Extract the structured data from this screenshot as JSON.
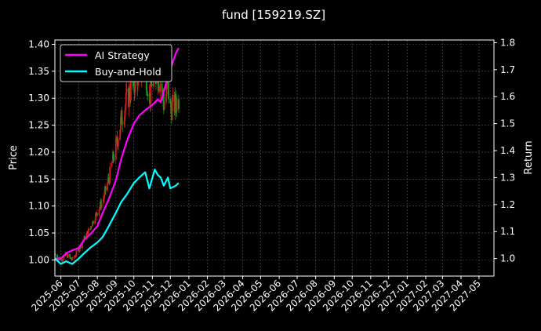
{
  "chart_data": {
    "type": "line",
    "title": "fund [159219.SZ]",
    "ylabel_left": "Price",
    "ylabel_right": "Return",
    "x_tick_labels": [
      "2025-06",
      "2025-07",
      "2025-08",
      "2025-09",
      "2025-10",
      "2025-11",
      "2025-12",
      "2026-01",
      "2026-02",
      "2026-03",
      "2026-04",
      "2026-05",
      "2026-06",
      "2026-07",
      "2026-08",
      "2026-09",
      "2026-10",
      "2026-11",
      "2026-12",
      "2027-01",
      "2027-02",
      "2027-03",
      "2027-04",
      "2027-05"
    ],
    "xlim": [
      "2025-05-22",
      "2027-05-26"
    ],
    "ylim_left": [
      0.97,
      1.408
    ],
    "ylim_right": [
      0.935,
      1.81
    ],
    "yticks_left": [
      "1.00",
      "1.05",
      "1.10",
      "1.15",
      "1.20",
      "1.25",
      "1.30",
      "1.35",
      "1.40"
    ],
    "yticks_right": [
      "1.0",
      "1.1",
      "1.2",
      "1.3",
      "1.4",
      "1.5",
      "1.6",
      "1.7",
      "1.8"
    ],
    "grid": true,
    "legend_position": "top-left",
    "colors": {
      "background": "#000000",
      "ai_strategy": "#ff00ff",
      "buy_and_hold": "#00ffff",
      "candle_up": "#d41c1c",
      "candle_down": "#1c9c1c",
      "grid": "#5a5a5a"
    },
    "series": [
      {
        "name": "AI Strategy",
        "axis": "right",
        "x": [
          "2025-05-22",
          "2025-06-01",
          "2025-06-10",
          "2025-06-20",
          "2025-07-01",
          "2025-07-10",
          "2025-07-20",
          "2025-08-01",
          "2025-08-10",
          "2025-08-20",
          "2025-09-01",
          "2025-09-10",
          "2025-09-20",
          "2025-10-01",
          "2025-10-10",
          "2025-10-20",
          "2025-11-01",
          "2025-11-10",
          "2025-11-15",
          "2025-11-20",
          "2025-12-01",
          "2025-12-10",
          "2025-12-15"
        ],
        "values": [
          1.0,
          1.0,
          1.02,
          1.03,
          1.04,
          1.07,
          1.09,
          1.12,
          1.17,
          1.22,
          1.29,
          1.37,
          1.44,
          1.5,
          1.53,
          1.55,
          1.57,
          1.59,
          1.58,
          1.62,
          1.7,
          1.76,
          1.78
        ]
      },
      {
        "name": "Buy-and-Hold",
        "axis": "right",
        "x": [
          "2025-05-22",
          "2025-06-01",
          "2025-06-10",
          "2025-06-20",
          "2025-07-01",
          "2025-07-10",
          "2025-07-20",
          "2025-08-01",
          "2025-08-10",
          "2025-08-20",
          "2025-09-01",
          "2025-09-10",
          "2025-09-20",
          "2025-10-01",
          "2025-10-10",
          "2025-10-20",
          "2025-10-27",
          "2025-11-01",
          "2025-11-05",
          "2025-11-10",
          "2025-11-15",
          "2025-11-20",
          "2025-11-27",
          "2025-12-01",
          "2025-12-10",
          "2025-12-15"
        ],
        "values": [
          1.0,
          0.98,
          0.99,
          0.98,
          1.0,
          1.02,
          1.04,
          1.06,
          1.08,
          1.12,
          1.17,
          1.21,
          1.24,
          1.28,
          1.3,
          1.32,
          1.26,
          1.3,
          1.33,
          1.31,
          1.3,
          1.27,
          1.3,
          1.26,
          1.27,
          1.28
        ]
      },
      {
        "name": "Price candles",
        "axis": "left",
        "x": [
          "2025-05-22",
          "2025-06-01",
          "2025-06-10",
          "2025-06-20",
          "2025-07-01",
          "2025-07-10",
          "2025-07-20",
          "2025-08-01",
          "2025-08-10",
          "2025-08-20",
          "2025-09-01",
          "2025-09-10",
          "2025-09-20",
          "2025-10-01",
          "2025-10-10",
          "2025-10-20",
          "2025-10-27",
          "2025-11-01",
          "2025-11-05",
          "2025-11-10",
          "2025-11-15",
          "2025-11-20",
          "2025-11-27",
          "2025-12-01",
          "2025-12-10",
          "2025-12-15"
        ],
        "values": [
          1.01,
          1.0,
          1.01,
          1.0,
          1.02,
          1.04,
          1.06,
          1.09,
          1.11,
          1.15,
          1.21,
          1.26,
          1.3,
          1.33,
          1.35,
          1.36,
          1.3,
          1.34,
          1.36,
          1.34,
          1.33,
          1.29,
          1.32,
          1.28,
          1.29,
          1.3
        ]
      }
    ]
  }
}
